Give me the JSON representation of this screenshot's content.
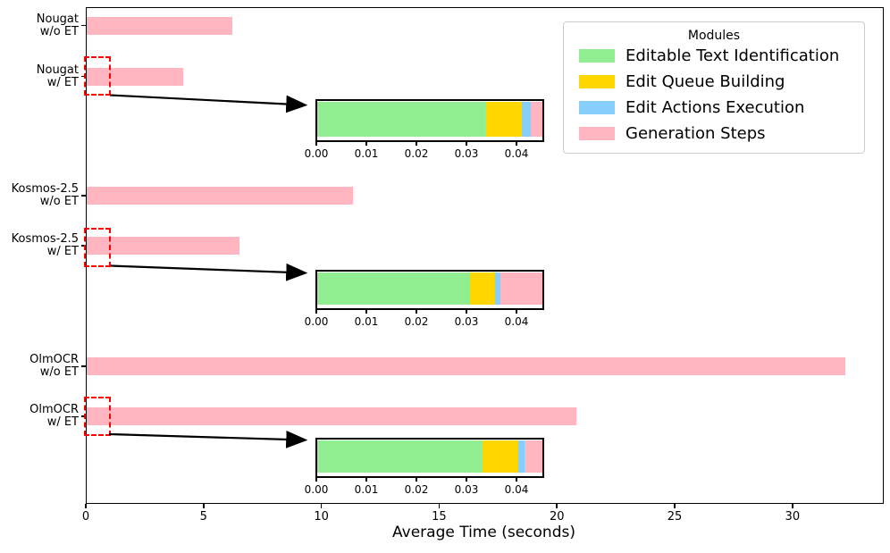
{
  "legend": {
    "title": "Modules",
    "position": "upper right",
    "items": [
      {
        "label": "Editable Text Identification",
        "color": "#90EE90"
      },
      {
        "label": "Edit Queue Building",
        "color": "#FFD700"
      },
      {
        "label": "Edit Actions Execution",
        "color": "#87CEFA"
      },
      {
        "label": "Generation Steps",
        "color": "#FFB6C1"
      }
    ]
  },
  "chart_data": {
    "type": "bar",
    "orientation": "horizontal",
    "title": "",
    "xlabel": "Average Time (seconds)",
    "xlim": [
      0,
      33.8
    ],
    "xticks": [
      0,
      5,
      10,
      15,
      20,
      25,
      30
    ],
    "grid": false,
    "bar_color": "#FFB6C1",
    "categories": [
      "Nougat w/o ET",
      "Nougat w/ ET",
      "Kosmos-2.5 w/o ET",
      "Kosmos-2.5 w/ ET",
      "OlmOCR w/o ET",
      "OlmOCR w/ ET"
    ],
    "category_lines": [
      [
        "Nougat",
        "w/o ET"
      ],
      [
        "Nougat",
        "w/ ET"
      ],
      [
        "Kosmos-2.5",
        "w/o ET"
      ],
      [
        "Kosmos-2.5",
        "w/ ET"
      ],
      [
        "OlmOCR",
        "w/o ET"
      ],
      [
        "OlmOCR",
        "w/ ET"
      ]
    ],
    "values_seconds": [
      6.2,
      4.1,
      11.3,
      6.5,
      32.2,
      20.8
    ],
    "zoom_boxes": {
      "color": "#FF0000",
      "style": "dashed",
      "rows": [
        "Nougat w/ ET",
        "Kosmos-2.5 w/ ET",
        "OlmOCR w/ ET"
      ]
    },
    "insets": [
      {
        "zoom_of": "Nougat w/ ET",
        "xlim": [
          0,
          0.045
        ],
        "xticks": [
          "0.00",
          "0.01",
          "0.02",
          "0.03",
          "0.04"
        ],
        "segments": [
          {
            "module": "Editable Text Identification",
            "start": 0,
            "end": 0.0336
          },
          {
            "module": "Edit Queue Building",
            "start": 0.0336,
            "end": 0.0409
          },
          {
            "module": "Edit Actions Execution",
            "start": 0.0409,
            "end": 0.0427
          },
          {
            "module": "Generation Steps",
            "start": 0.0427,
            "end": 0.045
          }
        ]
      },
      {
        "zoom_of": "Kosmos-2.5 w/ ET",
        "xlim": [
          0,
          0.045
        ],
        "xticks": [
          "0.00",
          "0.01",
          "0.02",
          "0.03",
          "0.04"
        ],
        "segments": [
          {
            "module": "Editable Text Identification",
            "start": 0,
            "end": 0.0305
          },
          {
            "module": "Edit Queue Building",
            "start": 0.0305,
            "end": 0.0355
          },
          {
            "module": "Edit Actions Execution",
            "start": 0.0355,
            "end": 0.0366
          },
          {
            "module": "Generation Steps",
            "start": 0.0366,
            "end": 0.045
          }
        ]
      },
      {
        "zoom_of": "OlmOCR w/ ET",
        "xlim": [
          0,
          0.045
        ],
        "xticks": [
          "0.00",
          "0.01",
          "0.02",
          "0.03",
          "0.04"
        ],
        "segments": [
          {
            "module": "Editable Text Identification",
            "start": 0,
            "end": 0.033
          },
          {
            "module": "Edit Queue Building",
            "start": 0.033,
            "end": 0.0401
          },
          {
            "module": "Edit Actions Execution",
            "start": 0.0401,
            "end": 0.0414
          },
          {
            "module": "Generation Steps",
            "start": 0.0414,
            "end": 0.045
          }
        ]
      }
    ]
  }
}
